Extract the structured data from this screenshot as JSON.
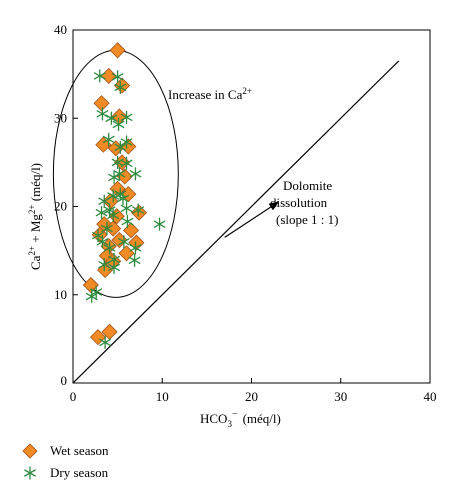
{
  "chart_data": {
    "type": "scatter",
    "xlabel_main": "HCO",
    "xlabel_sub": "3",
    "xlabel_sup": "−",
    "xlabel_unit": "(méq/l)",
    "ylabel_parts": {
      "a": "Ca",
      "a_sup": "2+",
      "b": " + Mg",
      "b_sup": "2+",
      "unit": " (méq/l)"
    },
    "xlim": [
      0,
      40
    ],
    "ylim": [
      0,
      40
    ],
    "xticks": [
      0,
      10,
      20,
      30,
      40
    ],
    "yticks": [
      10,
      20,
      30,
      40
    ],
    "y0_label": "0",
    "ellipse": {
      "cx": 4.8,
      "cy": 23.7,
      "rx": 7.0,
      "ry": 14.0
    },
    "ellipse_label": "Increase in Ca",
    "ellipse_label_sup": "2+",
    "line": {
      "x": [
        0,
        36.5
      ],
      "y": [
        0,
        36.5
      ]
    },
    "line_label": [
      "Dolomite",
      "dissolution",
      "(slope 1 : 1)"
    ],
    "arrow": {
      "from": [
        17,
        16.5
      ],
      "to": [
        23,
        20.5
      ]
    },
    "series": [
      {
        "name": "Wet season",
        "marker": "diamond",
        "color": "#f08a24",
        "stroke": "#a0521a",
        "points": [
          [
            5.0,
            37.7
          ],
          [
            5.5,
            33.7
          ],
          [
            4.0,
            34.8
          ],
          [
            3.2,
            31.7
          ],
          [
            5.2,
            30.2
          ],
          [
            3.4,
            27.0
          ],
          [
            4.8,
            26.6
          ],
          [
            6.2,
            26.8
          ],
          [
            5.5,
            25.0
          ],
          [
            5.8,
            23.4
          ],
          [
            5.0,
            22.0
          ],
          [
            6.2,
            21.4
          ],
          [
            4.2,
            20.6
          ],
          [
            7.4,
            19.3
          ],
          [
            3.5,
            18.0
          ],
          [
            4.5,
            17.5
          ],
          [
            3.0,
            16.8
          ],
          [
            5.2,
            16.2
          ],
          [
            7.1,
            15.9
          ],
          [
            4.0,
            15.5
          ],
          [
            3.8,
            14.4
          ],
          [
            6.0,
            14.7
          ],
          [
            4.5,
            13.8
          ],
          [
            3.6,
            12.8
          ],
          [
            2.0,
            11.1
          ],
          [
            2.8,
            5.2
          ],
          [
            4.1,
            5.8
          ],
          [
            6.5,
            17.3
          ],
          [
            4.9,
            18.9
          ]
        ]
      },
      {
        "name": "Dry season",
        "marker": "asterisk",
        "color": "#2e8b3e",
        "points": [
          [
            3.0,
            34.8
          ],
          [
            5.0,
            34.7
          ],
          [
            5.3,
            33.5
          ],
          [
            3.3,
            30.5
          ],
          [
            4.3,
            30.0
          ],
          [
            6.0,
            30.1
          ],
          [
            5.1,
            29.3
          ],
          [
            4.0,
            27.6
          ],
          [
            6.0,
            27.3
          ],
          [
            5.3,
            26.7
          ],
          [
            5.0,
            25.0
          ],
          [
            6.0,
            24.9
          ],
          [
            5.2,
            23.7
          ],
          [
            7.0,
            23.7
          ],
          [
            4.6,
            23.3
          ],
          [
            4.5,
            21.2
          ],
          [
            5.3,
            21.4
          ],
          [
            3.5,
            20.6
          ],
          [
            5.6,
            20.9
          ],
          [
            4.1,
            19.6
          ],
          [
            6.0,
            19.8
          ],
          [
            7.3,
            19.6
          ],
          [
            3.2,
            19.3
          ],
          [
            4.5,
            19.0
          ],
          [
            6.1,
            18.3
          ],
          [
            9.7,
            18.0
          ],
          [
            3.8,
            17.5
          ],
          [
            2.8,
            16.7
          ],
          [
            3.3,
            16.0
          ],
          [
            5.7,
            16.0
          ],
          [
            4.1,
            15.3
          ],
          [
            7.0,
            15.3
          ],
          [
            4.6,
            14.0
          ],
          [
            6.9,
            13.9
          ],
          [
            3.5,
            13.4
          ],
          [
            4.6,
            13.1
          ],
          [
            2.1,
            9.8
          ],
          [
            2.6,
            10.3
          ],
          [
            3.6,
            4.6
          ]
        ]
      }
    ]
  },
  "legend": {
    "wet_label": "Wet season",
    "dry_label": "Dry season"
  }
}
